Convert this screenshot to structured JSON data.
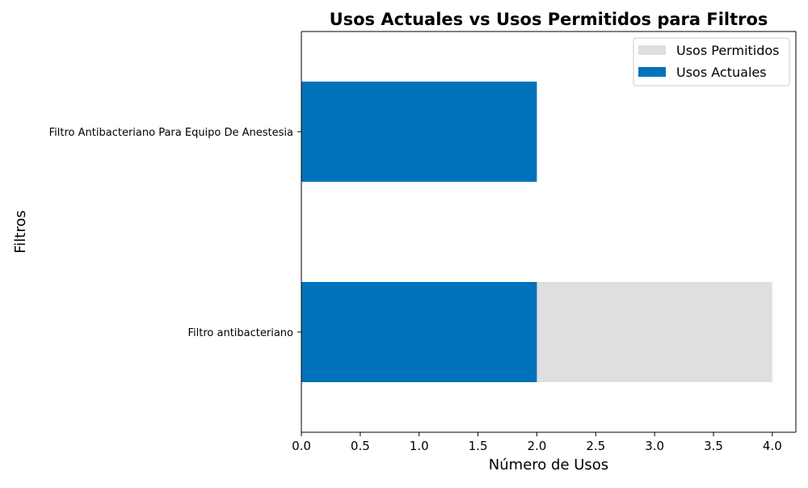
{
  "chart_data": {
    "type": "bar",
    "orientation": "horizontal",
    "stacking": "overlay",
    "title": "Usos Actuales vs Usos Permitidos para Filtros",
    "xlabel": "Número de Usos",
    "ylabel": "Filtros",
    "categories": [
      "Filtro Antibacteriano Para Equipo De Anestesia",
      "Filtro antibacteriano"
    ],
    "series": [
      {
        "name": "Usos Permitidos",
        "values": [
          0,
          4
        ],
        "color": "#dfdfdf"
      },
      {
        "name": "Usos Actuales",
        "values": [
          2,
          2
        ],
        "color": "#0072bb"
      }
    ],
    "xlim": [
      0,
      4.2
    ],
    "xticks": [
      0,
      0.5,
      1,
      1.5,
      2,
      2.5,
      3,
      3.5,
      4
    ],
    "xtick_labels": [
      "0.0",
      "0.5",
      "1.0",
      "1.5",
      "2.0",
      "2.5",
      "3.0",
      "3.5",
      "4.0"
    ],
    "legend": {
      "position": "top-right",
      "entries": [
        "Usos Permitidos",
        "Usos Actuales"
      ]
    },
    "grid": false
  }
}
